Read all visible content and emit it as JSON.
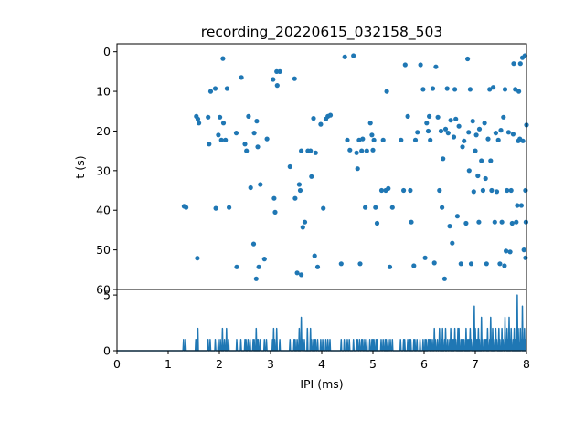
{
  "chart_data": [
    {
      "type": "scatter",
      "title": "recording_20220615_032158_503",
      "xlabel": "",
      "ylabel": "t (s)",
      "xlim": [
        0,
        8
      ],
      "ylim": [
        60,
        -2
      ],
      "y_inverted": true,
      "xticks": [
        0,
        1,
        2,
        3,
        4,
        5,
        6,
        7,
        8
      ],
      "yticks": [
        0,
        10,
        20,
        30,
        40,
        50,
        60
      ],
      "marker_color": "#1f77b4",
      "points": [
        [
          1.31,
          39.0
        ],
        [
          1.35,
          39.3
        ],
        [
          1.55,
          16.3
        ],
        [
          1.58,
          17.0
        ],
        [
          1.6,
          18.0
        ],
        [
          1.57,
          52.1
        ],
        [
          1.78,
          16.5
        ],
        [
          1.8,
          23.3
        ],
        [
          1.83,
          10.0
        ],
        [
          1.92,
          9.3
        ],
        [
          1.93,
          39.5
        ],
        [
          1.98,
          21.0
        ],
        [
          2.01,
          16.5
        ],
        [
          2.04,
          22.3
        ],
        [
          2.07,
          1.7
        ],
        [
          2.08,
          18.0
        ],
        [
          2.12,
          22.3
        ],
        [
          2.15,
          9.3
        ],
        [
          2.19,
          39.3
        ],
        [
          2.33,
          20.5
        ],
        [
          2.34,
          54.3
        ],
        [
          2.43,
          6.5
        ],
        [
          2.5,
          23.3
        ],
        [
          2.53,
          25.0
        ],
        [
          2.57,
          16.3
        ],
        [
          2.61,
          34.3
        ],
        [
          2.67,
          48.5
        ],
        [
          2.68,
          20.5
        ],
        [
          2.72,
          57.3
        ],
        [
          2.73,
          17.5
        ],
        [
          2.75,
          24.0
        ],
        [
          2.77,
          54.3
        ],
        [
          2.8,
          33.5
        ],
        [
          2.88,
          52.3
        ],
        [
          2.93,
          22.0
        ],
        [
          3.05,
          7.0
        ],
        [
          3.07,
          37.0
        ],
        [
          3.09,
          40.5
        ],
        [
          3.12,
          5.0
        ],
        [
          3.13,
          8.5
        ],
        [
          3.18,
          5.0
        ],
        [
          3.38,
          29.0
        ],
        [
          3.47,
          6.8
        ],
        [
          3.48,
          37.0
        ],
        [
          3.52,
          55.8
        ],
        [
          3.56,
          33.5
        ],
        [
          3.58,
          35.0
        ],
        [
          3.6,
          25.0
        ],
        [
          3.6,
          56.3
        ],
        [
          3.63,
          44.3
        ],
        [
          3.67,
          43.0
        ],
        [
          3.73,
          25.0
        ],
        [
          3.78,
          25.0
        ],
        [
          3.8,
          31.5
        ],
        [
          3.84,
          16.8
        ],
        [
          3.86,
          51.5
        ],
        [
          3.88,
          25.5
        ],
        [
          3.92,
          54.3
        ],
        [
          3.98,
          18.3
        ],
        [
          4.03,
          39.5
        ],
        [
          4.08,
          17.0
        ],
        [
          4.12,
          16.3
        ],
        [
          4.17,
          16.0
        ],
        [
          4.38,
          53.5
        ],
        [
          4.45,
          1.3
        ],
        [
          4.5,
          22.3
        ],
        [
          4.55,
          24.8
        ],
        [
          4.62,
          1.0
        ],
        [
          4.68,
          25.5
        ],
        [
          4.7,
          29.5
        ],
        [
          4.73,
          22.3
        ],
        [
          4.75,
          53.5
        ],
        [
          4.78,
          25.0
        ],
        [
          4.8,
          22.0
        ],
        [
          4.85,
          39.3
        ],
        [
          4.88,
          25.0
        ],
        [
          4.95,
          18.0
        ],
        [
          4.98,
          21.0
        ],
        [
          5.0,
          24.8
        ],
        [
          5.02,
          22.3
        ],
        [
          5.05,
          39.3
        ],
        [
          5.08,
          43.3
        ],
        [
          5.17,
          35.0
        ],
        [
          5.2,
          22.3
        ],
        [
          5.25,
          35.0
        ],
        [
          5.27,
          10.0
        ],
        [
          5.3,
          34.5
        ],
        [
          5.33,
          54.3
        ],
        [
          5.38,
          39.3
        ],
        [
          5.55,
          22.3
        ],
        [
          5.6,
          35.0
        ],
        [
          5.63,
          3.3
        ],
        [
          5.68,
          16.3
        ],
        [
          5.73,
          35.0
        ],
        [
          5.75,
          43.0
        ],
        [
          5.8,
          54.0
        ],
        [
          5.83,
          22.3
        ],
        [
          5.87,
          20.3
        ],
        [
          5.93,
          3.3
        ],
        [
          5.98,
          9.5
        ],
        [
          6.02,
          52.0
        ],
        [
          6.05,
          18.0
        ],
        [
          6.08,
          20.0
        ],
        [
          6.1,
          16.3
        ],
        [
          6.12,
          22.3
        ],
        [
          6.17,
          9.3
        ],
        [
          6.2,
          53.3
        ],
        [
          6.23,
          3.8
        ],
        [
          6.27,
          16.5
        ],
        [
          6.3,
          35.0
        ],
        [
          6.33,
          20.0
        ],
        [
          6.35,
          39.3
        ],
        [
          6.37,
          27.0
        ],
        [
          6.4,
          57.3
        ],
        [
          6.42,
          19.5
        ],
        [
          6.45,
          9.3
        ],
        [
          6.47,
          20.5
        ],
        [
          6.5,
          44.0
        ],
        [
          6.52,
          17.3
        ],
        [
          6.55,
          48.3
        ],
        [
          6.58,
          21.5
        ],
        [
          6.6,
          9.5
        ],
        [
          6.62,
          17.0
        ],
        [
          6.65,
          41.5
        ],
        [
          6.68,
          18.8
        ],
        [
          6.72,
          53.5
        ],
        [
          6.75,
          24.0
        ],
        [
          6.78,
          22.5
        ],
        [
          6.82,
          43.3
        ],
        [
          6.85,
          1.8
        ],
        [
          6.87,
          20.3
        ],
        [
          6.88,
          30.0
        ],
        [
          6.9,
          9.5
        ],
        [
          6.92,
          53.5
        ],
        [
          6.95,
          17.5
        ],
        [
          6.97,
          35.3
        ],
        [
          7.0,
          25.0
        ],
        [
          7.02,
          21.0
        ],
        [
          7.05,
          31.3
        ],
        [
          7.07,
          43.0
        ],
        [
          7.08,
          19.5
        ],
        [
          7.12,
          27.5
        ],
        [
          7.15,
          35.0
        ],
        [
          7.18,
          18.0
        ],
        [
          7.2,
          32.0
        ],
        [
          7.22,
          53.5
        ],
        [
          7.25,
          22.0
        ],
        [
          7.28,
          9.5
        ],
        [
          7.3,
          27.5
        ],
        [
          7.32,
          35.0
        ],
        [
          7.35,
          9.0
        ],
        [
          7.38,
          43.0
        ],
        [
          7.4,
          20.5
        ],
        [
          7.42,
          35.3
        ],
        [
          7.45,
          22.3
        ],
        [
          7.48,
          53.5
        ],
        [
          7.5,
          19.8
        ],
        [
          7.52,
          43.0
        ],
        [
          7.55,
          16.5
        ],
        [
          7.57,
          54.0
        ],
        [
          7.58,
          9.5
        ],
        [
          7.6,
          50.3
        ],
        [
          7.62,
          35.0
        ],
        [
          7.65,
          20.3
        ],
        [
          7.68,
          50.5
        ],
        [
          7.7,
          35.0
        ],
        [
          7.72,
          43.3
        ],
        [
          7.74,
          20.8
        ],
        [
          7.75,
          3.0
        ],
        [
          7.78,
          9.5
        ],
        [
          7.8,
          43.0
        ],
        [
          7.82,
          38.8
        ],
        [
          7.84,
          22.5
        ],
        [
          7.85,
          10.0
        ],
        [
          7.87,
          22.0
        ],
        [
          7.88,
          3.0
        ],
        [
          7.9,
          38.8
        ],
        [
          7.92,
          1.5
        ],
        [
          7.93,
          22.5
        ],
        [
          7.95,
          50.0
        ],
        [
          7.97,
          1.0
        ],
        [
          7.98,
          35.0
        ],
        [
          7.99,
          43.0
        ],
        [
          8.0,
          18.5
        ],
        [
          7.98,
          52.0
        ]
      ]
    },
    {
      "type": "line",
      "title": "",
      "xlabel": "IPI (ms)",
      "ylabel": "",
      "xlim": [
        0,
        8
      ],
      "ylim": [
        0,
        5.5
      ],
      "xticks": [
        0,
        1,
        2,
        3,
        4,
        5,
        6,
        7,
        8
      ],
      "yticks": [
        0,
        5
      ],
      "line_color": "#1f77b4",
      "bin_width": 0.02,
      "peaks": [
        [
          1.3,
          1
        ],
        [
          1.34,
          1
        ],
        [
          1.54,
          1
        ],
        [
          1.56,
          1
        ],
        [
          1.58,
          2
        ],
        [
          1.78,
          1
        ],
        [
          1.82,
          1
        ],
        [
          1.92,
          1
        ],
        [
          1.98,
          1
        ],
        [
          2.02,
          1
        ],
        [
          2.06,
          2
        ],
        [
          2.1,
          1
        ],
        [
          2.14,
          2
        ],
        [
          2.18,
          1
        ],
        [
          2.34,
          1
        ],
        [
          2.42,
          1
        ],
        [
          2.5,
          1
        ],
        [
          2.52,
          1
        ],
        [
          2.56,
          1
        ],
        [
          2.6,
          1
        ],
        [
          2.66,
          1
        ],
        [
          2.68,
          1
        ],
        [
          2.72,
          2
        ],
        [
          2.74,
          1
        ],
        [
          2.76,
          1
        ],
        [
          2.8,
          1
        ],
        [
          2.88,
          1
        ],
        [
          2.92,
          1
        ],
        [
          3.04,
          1
        ],
        [
          3.06,
          2
        ],
        [
          3.08,
          1
        ],
        [
          3.12,
          2
        ],
        [
          3.18,
          1
        ],
        [
          3.38,
          1
        ],
        [
          3.46,
          1
        ],
        [
          3.48,
          1
        ],
        [
          3.52,
          1
        ],
        [
          3.56,
          2
        ],
        [
          3.6,
          3
        ],
        [
          3.62,
          1
        ],
        [
          3.66,
          1
        ],
        [
          3.72,
          2
        ],
        [
          3.78,
          2
        ],
        [
          3.8,
          1
        ],
        [
          3.84,
          1
        ],
        [
          3.86,
          1
        ],
        [
          3.88,
          1
        ],
        [
          3.92,
          1
        ],
        [
          3.98,
          1
        ],
        [
          4.02,
          1
        ],
        [
          4.08,
          1
        ],
        [
          4.12,
          1
        ],
        [
          4.16,
          1
        ],
        [
          4.38,
          1
        ],
        [
          4.44,
          1
        ],
        [
          4.5,
          1
        ],
        [
          4.54,
          1
        ],
        [
          4.62,
          1
        ],
        [
          4.68,
          1
        ],
        [
          4.7,
          1
        ],
        [
          4.74,
          1
        ],
        [
          4.78,
          1
        ],
        [
          4.8,
          1
        ],
        [
          4.84,
          1
        ],
        [
          4.88,
          1
        ],
        [
          4.94,
          1
        ],
        [
          4.98,
          1
        ],
        [
          5.0,
          1
        ],
        [
          5.02,
          1
        ],
        [
          5.06,
          1
        ],
        [
          5.08,
          1
        ],
        [
          5.16,
          1
        ],
        [
          5.2,
          1
        ],
        [
          5.24,
          1
        ],
        [
          5.26,
          1
        ],
        [
          5.3,
          1
        ],
        [
          5.34,
          1
        ],
        [
          5.38,
          1
        ],
        [
          5.54,
          1
        ],
        [
          5.6,
          1
        ],
        [
          5.62,
          1
        ],
        [
          5.68,
          1
        ],
        [
          5.72,
          1
        ],
        [
          5.74,
          1
        ],
        [
          5.8,
          1
        ],
        [
          5.82,
          1
        ],
        [
          5.86,
          1
        ],
        [
          5.92,
          1
        ],
        [
          5.98,
          1
        ],
        [
          6.02,
          1
        ],
        [
          6.04,
          1
        ],
        [
          6.08,
          1
        ],
        [
          6.1,
          1
        ],
        [
          6.12,
          1
        ],
        [
          6.16,
          1
        ],
        [
          6.2,
          2
        ],
        [
          6.22,
          1
        ],
        [
          6.26,
          1
        ],
        [
          6.3,
          2
        ],
        [
          6.34,
          1
        ],
        [
          6.36,
          2
        ],
        [
          6.4,
          1
        ],
        [
          6.42,
          2
        ],
        [
          6.46,
          1
        ],
        [
          6.5,
          1
        ],
        [
          6.52,
          2
        ],
        [
          6.56,
          1
        ],
        [
          6.58,
          1
        ],
        [
          6.6,
          2
        ],
        [
          6.62,
          1
        ],
        [
          6.66,
          2
        ],
        [
          6.68,
          2
        ],
        [
          6.72,
          1
        ],
        [
          6.74,
          1
        ],
        [
          6.78,
          1
        ],
        [
          6.82,
          2
        ],
        [
          6.84,
          1
        ],
        [
          6.86,
          1
        ],
        [
          6.88,
          1
        ],
        [
          6.9,
          2
        ],
        [
          6.92,
          1
        ],
        [
          6.96,
          1
        ],
        [
          6.98,
          4
        ],
        [
          7.0,
          2
        ],
        [
          7.02,
          1
        ],
        [
          7.04,
          1
        ],
        [
          7.06,
          2
        ],
        [
          7.08,
          1
        ],
        [
          7.12,
          3
        ],
        [
          7.14,
          1
        ],
        [
          7.18,
          1
        ],
        [
          7.2,
          1
        ],
        [
          7.22,
          1
        ],
        [
          7.24,
          2
        ],
        [
          7.28,
          1
        ],
        [
          7.3,
          3
        ],
        [
          7.32,
          1
        ],
        [
          7.34,
          2
        ],
        [
          7.38,
          1
        ],
        [
          7.4,
          2
        ],
        [
          7.42,
          1
        ],
        [
          7.46,
          2
        ],
        [
          7.48,
          1
        ],
        [
          7.52,
          2
        ],
        [
          7.54,
          1
        ],
        [
          7.58,
          3
        ],
        [
          7.6,
          1
        ],
        [
          7.62,
          2
        ],
        [
          7.64,
          1
        ],
        [
          7.66,
          3
        ],
        [
          7.68,
          1
        ],
        [
          7.7,
          2
        ],
        [
          7.74,
          1
        ],
        [
          7.76,
          2
        ],
        [
          7.78,
          1
        ],
        [
          7.82,
          5
        ],
        [
          7.84,
          2
        ],
        [
          7.88,
          2
        ],
        [
          7.9,
          1
        ],
        [
          7.92,
          4
        ],
        [
          7.94,
          1
        ],
        [
          7.96,
          2
        ],
        [
          7.98,
          1
        ]
      ]
    }
  ]
}
